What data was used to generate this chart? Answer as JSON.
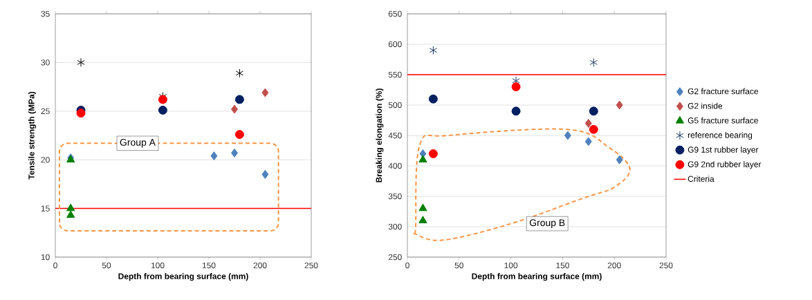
{
  "chart_data": [
    {
      "type": "scatter",
      "xlabel": "Depth from bearing surface (mm)",
      "ylabel": "Tensile strength (MPa)",
      "xlim": [
        0,
        250
      ],
      "xticks": [
        0,
        50,
        100,
        150,
        200,
        250
      ],
      "ylim": [
        10,
        35
      ],
      "yticks": [
        10,
        15,
        20,
        25,
        30,
        35
      ],
      "grid": "y",
      "annotations": [
        "Group A"
      ],
      "ref_lines": [
        {
          "axis": "y",
          "value": 15,
          "color": "#ff0000"
        }
      ],
      "series": [
        {
          "color": "#4f81bd",
          "marker": "diamond",
          "x": [
            15,
            155,
            175,
            205
          ],
          "values": [
            20.2,
            20.4,
            20.7,
            18.5
          ]
        },
        {
          "color": "#c0504d",
          "marker": "diamond",
          "x": [
            175,
            205
          ],
          "values": [
            25.2,
            26.9
          ]
        },
        {
          "color": "#008000",
          "marker": "triangle",
          "x": [
            15,
            15,
            15
          ],
          "values": [
            20.0,
            15.0,
            14.3
          ]
        },
        {
          "color": "#000000",
          "marker": "cross",
          "x": [
            25,
            105,
            180
          ],
          "values": [
            30.0,
            26.5,
            28.9
          ]
        },
        {
          "color": "#002060",
          "marker": "circle",
          "x": [
            25,
            105,
            180
          ],
          "values": [
            25.1,
            25.1,
            26.2
          ]
        },
        {
          "color": "#ff0000",
          "marker": "circle",
          "x": [
            25,
            105,
            180
          ],
          "values": [
            24.8,
            26.2,
            22.6
          ]
        }
      ]
    },
    {
      "type": "scatter",
      "xlabel": "Depth from bearing surface (mm)",
      "ylabel": "Breaking elongation (%)",
      "xlim": [
        0,
        250
      ],
      "xticks": [
        0,
        50,
        100,
        150,
        200,
        250
      ],
      "ylim": [
        250,
        650
      ],
      "yticks": [
        250,
        300,
        350,
        400,
        450,
        500,
        550,
        600,
        650
      ],
      "grid": "y",
      "legend": "right",
      "annotations": [
        "Group B"
      ],
      "series": [
        {
          "name": "G2 fracture surface",
          "color": "#4f81bd",
          "marker": "diamond",
          "x": [
            15,
            155,
            175,
            205
          ],
          "values": [
            420,
            450,
            440,
            410
          ]
        },
        {
          "name": "G2 inside",
          "color": "#c0504d",
          "marker": "diamond",
          "x": [
            175,
            205
          ],
          "values": [
            470,
            500
          ]
        },
        {
          "name": "G5 fracture surface",
          "color": "#008000",
          "marker": "triangle",
          "x": [
            15,
            15,
            15
          ],
          "values": [
            410,
            330,
            310
          ]
        },
        {
          "name": "reference bearing",
          "color": "#1f3864",
          "marker": "cross",
          "x": [
            25,
            105,
            180
          ],
          "values": [
            590,
            540,
            570
          ]
        },
        {
          "name": "G9 1st rubber layer",
          "color": "#002060",
          "marker": "circle",
          "x": [
            25,
            105,
            180
          ],
          "values": [
            510,
            490,
            490
          ]
        },
        {
          "name": "G9 2nd rubber layer",
          "color": "#ff0000",
          "marker": "circle",
          "x": [
            25,
            105,
            180
          ],
          "values": [
            420,
            530,
            460
          ]
        },
        {
          "name": "Criteria",
          "type": "line",
          "color": "#ff0000",
          "marker": "none",
          "x": [
            0,
            250
          ],
          "values": [
            550,
            550
          ]
        }
      ]
    }
  ]
}
